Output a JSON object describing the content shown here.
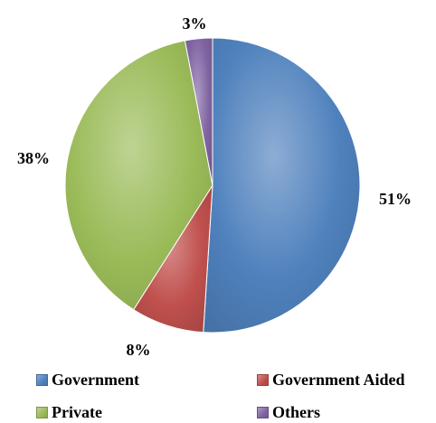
{
  "chart_data": {
    "type": "pie",
    "title": "",
    "slices": [
      {
        "name": "Government",
        "value": 51,
        "label": "51%",
        "color": "#4F81BD"
      },
      {
        "name": "Government Aided",
        "value": 8,
        "label": "8%",
        "color": "#C0504D"
      },
      {
        "name": "Private",
        "value": 38,
        "label": "38%",
        "color": "#9BBB59"
      },
      {
        "name": "Others",
        "value": 3,
        "label": "3%",
        "color": "#8064A2"
      }
    ],
    "legend_position": "bottom"
  }
}
